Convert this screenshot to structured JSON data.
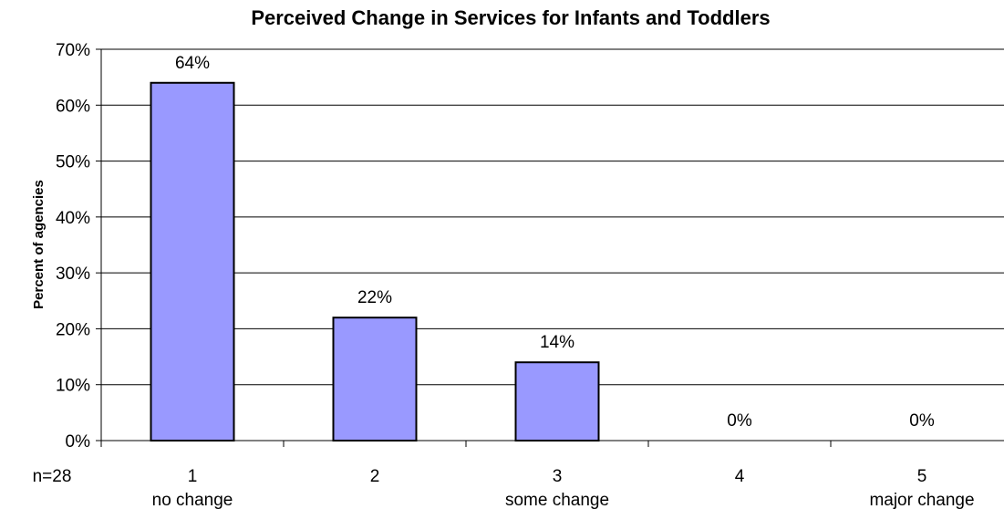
{
  "chart_data": {
    "type": "bar",
    "title": "Perceived Change in Services for Infants and Toddlers",
    "xlabel": "",
    "ylabel": "Percent of agencies",
    "sample_note": "n=28",
    "categories": [
      "1",
      "2",
      "3",
      "4",
      "5"
    ],
    "category_sublabels": [
      "no change",
      "",
      "some change",
      "",
      "major change"
    ],
    "values": [
      64,
      22,
      14,
      0,
      0
    ],
    "data_labels": [
      "64%",
      "22%",
      "14%",
      "0%",
      "0%"
    ],
    "ylim": [
      0,
      70
    ],
    "yticks": [
      0,
      10,
      20,
      30,
      40,
      50,
      60,
      70
    ],
    "ytick_labels": [
      "0%",
      "10%",
      "20%",
      "30%",
      "40%",
      "50%",
      "60%",
      "70%"
    ],
    "grid": true,
    "legend": "none",
    "bar_color": "#9999ff",
    "bar_edge_color": "#000000"
  }
}
